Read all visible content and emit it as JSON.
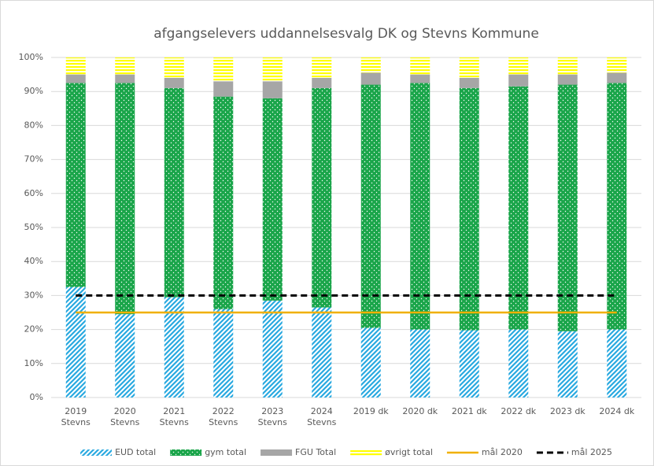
{
  "chart_data": {
    "type": "bar",
    "stacked": true,
    "title": "afgangselevers uddannelsesvalg DK og Stevns Kommune",
    "categories": [
      "2019 Stevns",
      "2020 Stevns",
      "2021 Stevns",
      "2022 Stevns",
      "2023 Stevns",
      "2024 Stevns",
      "2019 dk",
      "2020 dk",
      "2021 dk",
      "2022 dk",
      "2023 dk",
      "2024 dk"
    ],
    "series": [
      {
        "name": "EUD total",
        "type": "bar",
        "color": "#29a9e0",
        "pattern": "stripes",
        "values": [
          32.5,
          24.5,
          29.5,
          26,
          28.5,
          26.5,
          20.5,
          20,
          19.8,
          20,
          19.5,
          20
        ]
      },
      {
        "name": "gym total",
        "type": "bar",
        "color": "#1aa54a",
        "pattern": "dots",
        "values": [
          60,
          68,
          61.5,
          62.5,
          59.5,
          64.5,
          71.5,
          72.5,
          71.2,
          71.5,
          72.5,
          72.5
        ]
      },
      {
        "name": "FGU Total",
        "type": "bar",
        "color": "#a6a6a6",
        "pattern": "solid",
        "values": [
          2.5,
          2.5,
          3,
          4.5,
          5,
          3,
          3.5,
          2.5,
          3,
          3.5,
          3,
          3
        ]
      },
      {
        "name": "øvrigt total",
        "type": "bar",
        "color": "#ffff00",
        "pattern": "hlines",
        "values": [
          5,
          5,
          6,
          7,
          7,
          6,
          4.5,
          5,
          6,
          5,
          5,
          4.5
        ]
      },
      {
        "name": "mål 2020",
        "type": "line",
        "color": "#f0b000",
        "dashed": false,
        "values": [
          25,
          25,
          25,
          25,
          25,
          25,
          25,
          25,
          25,
          25,
          25,
          25
        ]
      },
      {
        "name": "mål 2025",
        "type": "line",
        "color": "#000000",
        "dashed": true,
        "values": [
          30,
          30,
          30,
          30,
          30,
          30,
          30,
          30,
          30,
          30,
          30,
          30
        ]
      }
    ],
    "ylim": [
      0,
      100
    ],
    "yticks": [
      {
        "value": 0,
        "label": "0%"
      },
      {
        "value": 10,
        "label": "10%"
      },
      {
        "value": 20,
        "label": "20%"
      },
      {
        "value": 30,
        "label": "30%"
      },
      {
        "value": 40,
        "label": "40%"
      },
      {
        "value": 50,
        "label": "50%"
      },
      {
        "value": 60,
        "label": "60%"
      },
      {
        "value": 70,
        "label": "70%"
      },
      {
        "value": 80,
        "label": "80%"
      },
      {
        "value": 90,
        "label": "90%"
      },
      {
        "value": 100,
        "label": "100%"
      }
    ],
    "grid": true,
    "legend": "bottom"
  }
}
